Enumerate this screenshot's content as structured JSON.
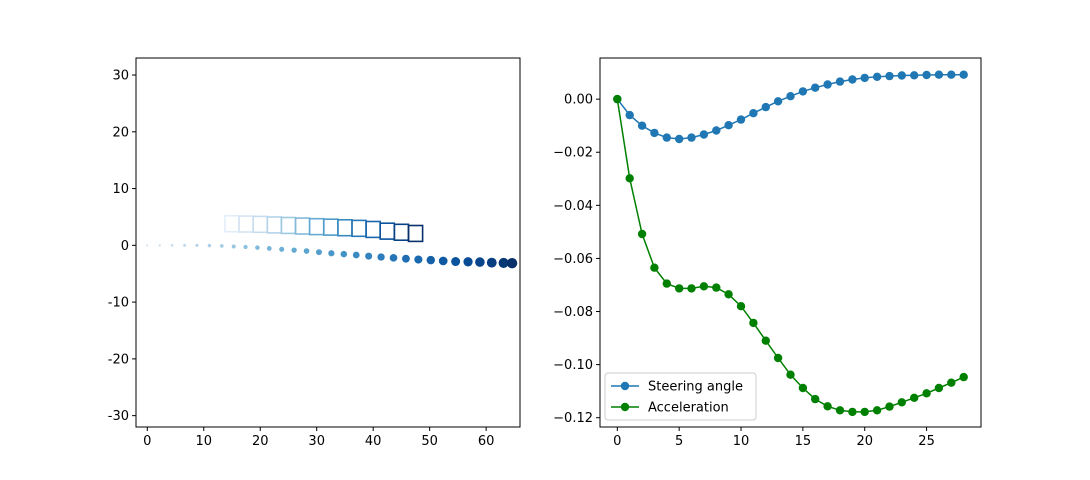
{
  "chart_data": [
    {
      "type": "scatter",
      "xlim": [
        -2,
        66
      ],
      "ylim": [
        -32,
        33
      ],
      "xticks": [
        0,
        10,
        20,
        30,
        40,
        50,
        60
      ],
      "yticks": [
        -30,
        -20,
        -10,
        0,
        10,
        20,
        30
      ],
      "grid": false,
      "colormap": "Blues",
      "series": [
        {
          "kind": "trajectory-points",
          "x": [
            0,
            2.2,
            4.4,
            6.6,
            8.8,
            11.0,
            13.2,
            15.3,
            17.4,
            19.5,
            21.6,
            23.8,
            26.0,
            28.2,
            30.4,
            32.6,
            34.8,
            37.0,
            39.2,
            41.4,
            43.6,
            45.8,
            48.0,
            50.2,
            52.4,
            54.6,
            56.8,
            58.9,
            61.0,
            63.1,
            64.6
          ],
          "y": [
            0,
            0,
            0,
            0,
            0,
            -0.05,
            -0.1,
            -0.2,
            -0.3,
            -0.4,
            -0.55,
            -0.7,
            -0.85,
            -1.0,
            -1.2,
            -1.4,
            -1.55,
            -1.7,
            -1.9,
            -2.05,
            -2.2,
            -2.35,
            -2.5,
            -2.6,
            -2.75,
            -2.85,
            -2.9,
            -2.95,
            -3.05,
            -3.1,
            -3.15
          ]
        },
        {
          "kind": "vehicle-boxes",
          "x": [
            15,
            17.5,
            20,
            22.5,
            25,
            27.5,
            30,
            32.5,
            35,
            37.5,
            40,
            42.5,
            45,
            47.5
          ],
          "y": [
            3.8,
            3.75,
            3.7,
            3.6,
            3.5,
            3.4,
            3.3,
            3.2,
            3.1,
            3.0,
            2.8,
            2.5,
            2.3,
            2.1
          ],
          "width": 2.5,
          "height": 2.8
        }
      ]
    },
    {
      "type": "line",
      "xlim": [
        -1.4,
        29.4
      ],
      "ylim": [
        -0.1235,
        0.0155
      ],
      "xticks": [
        0,
        5,
        10,
        15,
        20,
        25
      ],
      "yticks": [
        0.0,
        -0.02,
        -0.04,
        -0.06,
        -0.08,
        -0.1,
        -0.12
      ],
      "ytick_labels": [
        "0.00",
        "−0.02",
        "−0.04",
        "−0.06",
        "−0.08",
        "−0.10",
        "−0.12"
      ],
      "grid": false,
      "legend_position": "lower-left",
      "x": [
        0,
        1,
        2,
        3,
        4,
        5,
        6,
        7,
        8,
        9,
        10,
        11,
        12,
        13,
        14,
        15,
        16,
        17,
        18,
        19,
        20,
        21,
        22,
        23,
        24,
        25,
        26,
        27,
        28
      ],
      "series": [
        {
          "name": "Steering angle",
          "color": "#1f77b4",
          "values": [
            0.0,
            -0.006,
            -0.01,
            -0.0127,
            -0.0145,
            -0.015,
            -0.0145,
            -0.0133,
            -0.0118,
            -0.0098,
            -0.0077,
            -0.0053,
            -0.003,
            -0.0008,
            0.0011,
            0.0029,
            0.0043,
            0.0055,
            0.0066,
            0.0074,
            0.008,
            0.0084,
            0.0087,
            0.0089,
            0.009,
            0.0091,
            0.0092,
            0.0092,
            0.0092
          ]
        },
        {
          "name": "Acceleration",
          "color": "#008000",
          "values": [
            0.0,
            -0.0298,
            -0.0508,
            -0.0635,
            -0.0695,
            -0.0713,
            -0.0713,
            -0.0705,
            -0.071,
            -0.0735,
            -0.078,
            -0.0843,
            -0.091,
            -0.0975,
            -0.1038,
            -0.1088,
            -0.113,
            -0.1157,
            -0.1172,
            -0.1178,
            -0.1178,
            -0.1172,
            -0.1158,
            -0.1142,
            -0.1125,
            -0.1108,
            -0.1088,
            -0.1068,
            -0.1047
          ]
        }
      ]
    }
  ]
}
